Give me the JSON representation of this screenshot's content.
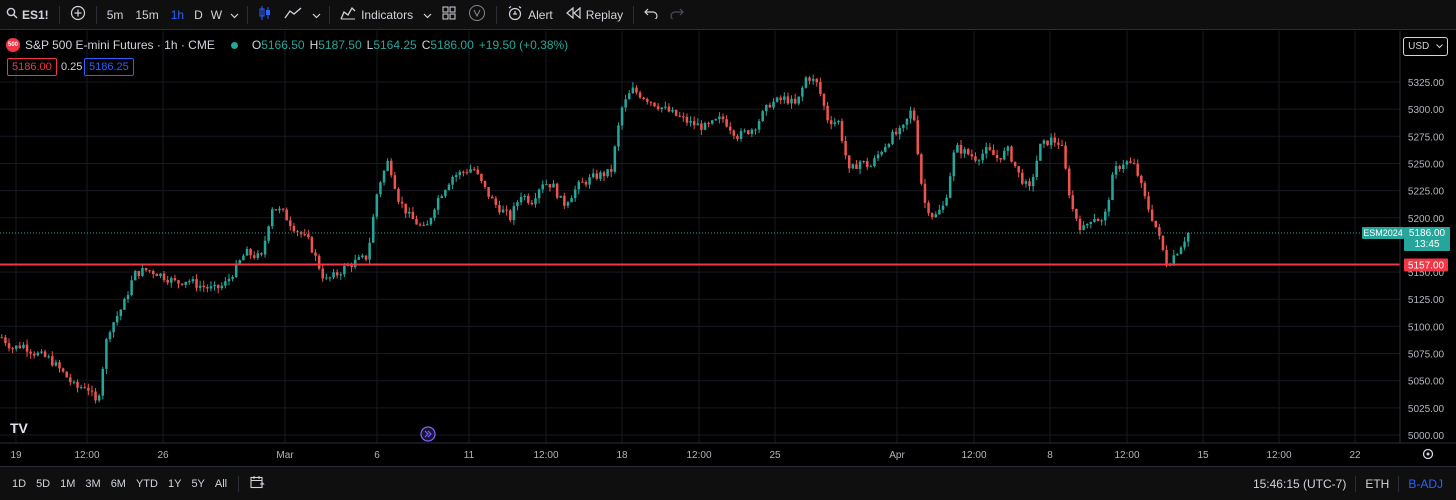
{
  "toolbar": {
    "symbol": "ES1!",
    "intervals": [
      "5m",
      "15m",
      "1h",
      "D",
      "W"
    ],
    "active_interval": "1h",
    "indicators_label": "Indicators",
    "alert_label": "Alert",
    "replay_label": "Replay"
  },
  "legend": {
    "logo_text": "500",
    "title": "S&P 500 E-mini Futures · 1h · CME",
    "open_key": "O",
    "open": "5166.50",
    "high_key": "H",
    "high": "5187.50",
    "low_key": "L",
    "low": "5164.25",
    "close_key": "C",
    "close": "5186.00",
    "change": "+19.50 (+0.38%)",
    "sell_price": "5186.00",
    "spread": "0.25",
    "buy_price": "5186.25"
  },
  "currency": "USD",
  "price_axis": {
    "ticks": [
      "5325.00",
      "5300.00",
      "5275.00",
      "5250.00",
      "5225.00",
      "5200.00",
      "5150.00",
      "5125.00",
      "5100.00",
      "5075.00",
      "5050.00",
      "5025.00",
      "5000.00"
    ],
    "ticker_label": "ESM2024",
    "last_price": "5186.00",
    "countdown": "13:45",
    "line_price": "5157.00"
  },
  "time_axis": {
    "labels": [
      "19",
      "12:00",
      "26",
      "Mar",
      "6",
      "11",
      "12:00",
      "18",
      "12:00",
      "25",
      "Apr",
      "12:00",
      "8",
      "12:00",
      "15",
      "12:00",
      "22"
    ]
  },
  "bottom": {
    "ranges": [
      "1D",
      "5D",
      "1M",
      "3M",
      "6M",
      "YTD",
      "1Y",
      "5Y",
      "All"
    ],
    "clock": "15:46:15 (UTC-7)",
    "session": "ETH",
    "adj": "B-ADJ"
  },
  "brand": "TV",
  "colors": {
    "up": "#26a69a",
    "down": "#ef5350",
    "line": "#f23645",
    "accent": "#2962ff"
  },
  "chart_data": {
    "type": "candlestick",
    "ylim": [
      4995,
      5340
    ],
    "horizontal_line": 5157.0,
    "last_price": 5186.0,
    "x_labels": [
      "19",
      "12:00",
      "26",
      "Mar",
      "6",
      "11",
      "12:00",
      "18",
      "12:00",
      "25",
      "Apr",
      "12:00",
      "8",
      "12:00",
      "15",
      "12:00",
      "22"
    ],
    "close_path": [
      [
        0,
        5090
      ],
      [
        4,
        5080
      ],
      [
        8,
        5083
      ],
      [
        12,
        5076
      ],
      [
        18,
        5070
      ],
      [
        24,
        5055
      ],
      [
        28,
        5043
      ],
      [
        32,
        5046
      ],
      [
        36,
        5027
      ],
      [
        40,
        5095
      ],
      [
        46,
        5120
      ],
      [
        50,
        5148
      ],
      [
        54,
        5152
      ],
      [
        58,
        5150
      ],
      [
        62,
        5145
      ],
      [
        66,
        5140
      ],
      [
        70,
        5143
      ],
      [
        74,
        5138
      ],
      [
        80,
        5134
      ],
      [
        84,
        5138
      ],
      [
        88,
        5152
      ],
      [
        92,
        5168
      ],
      [
        98,
        5163
      ],
      [
        102,
        5210
      ],
      [
        106,
        5205
      ],
      [
        110,
        5192
      ],
      [
        116,
        5178
      ],
      [
        122,
        5142
      ],
      [
        126,
        5147
      ],
      [
        130,
        5155
      ],
      [
        134,
        5160
      ],
      [
        138,
        5164
      ],
      [
        142,
        5228
      ],
      [
        146,
        5253
      ],
      [
        150,
        5216
      ],
      [
        154,
        5201
      ],
      [
        160,
        5188
      ],
      [
        164,
        5215
      ],
      [
        170,
        5238
      ],
      [
        174,
        5242
      ],
      [
        178,
        5246
      ],
      [
        182,
        5228
      ],
      [
        186,
        5213
      ],
      [
        192,
        5200
      ],
      [
        196,
        5222
      ],
      [
        200,
        5215
      ],
      [
        204,
        5233
      ],
      [
        208,
        5230
      ],
      [
        212,
        5212
      ],
      [
        218,
        5230
      ],
      [
        224,
        5238
      ],
      [
        230,
        5242
      ],
      [
        234,
        5300
      ],
      [
        238,
        5318
      ],
      [
        242,
        5312
      ],
      [
        248,
        5303
      ],
      [
        254,
        5295
      ],
      [
        260,
        5287
      ],
      [
        266,
        5283
      ],
      [
        272,
        5292
      ],
      [
        278,
        5275
      ],
      [
        284,
        5283
      ],
      [
        290,
        5305
      ],
      [
        296,
        5310
      ],
      [
        300,
        5303
      ],
      [
        304,
        5331
      ],
      [
        308,
        5323
      ],
      [
        312,
        5290
      ],
      [
        316,
        5288
      ],
      [
        320,
        5242
      ],
      [
        324,
        5252
      ],
      [
        328,
        5247
      ],
      [
        332,
        5262
      ],
      [
        336,
        5275
      ],
      [
        340,
        5280
      ],
      [
        344,
        5302
      ],
      [
        348,
        5216
      ],
      [
        352,
        5200
      ],
      [
        356,
        5212
      ],
      [
        360,
        5265
      ],
      [
        364,
        5260
      ],
      [
        368,
        5255
      ],
      [
        372,
        5262
      ],
      [
        376,
        5255
      ],
      [
        380,
        5262
      ],
      [
        384,
        5240
      ],
      [
        388,
        5225
      ],
      [
        392,
        5265
      ],
      [
        396,
        5272
      ],
      [
        400,
        5268
      ],
      [
        404,
        5210
      ],
      [
        408,
        5188
      ],
      [
        412,
        5202
      ],
      [
        416,
        5195
      ],
      [
        420,
        5243
      ],
      [
        424,
        5252
      ],
      [
        428,
        5247
      ],
      [
        432,
        5215
      ],
      [
        436,
        5190
      ],
      [
        440,
        5157
      ],
      [
        444,
        5170
      ],
      [
        448,
        5186
      ]
    ]
  }
}
